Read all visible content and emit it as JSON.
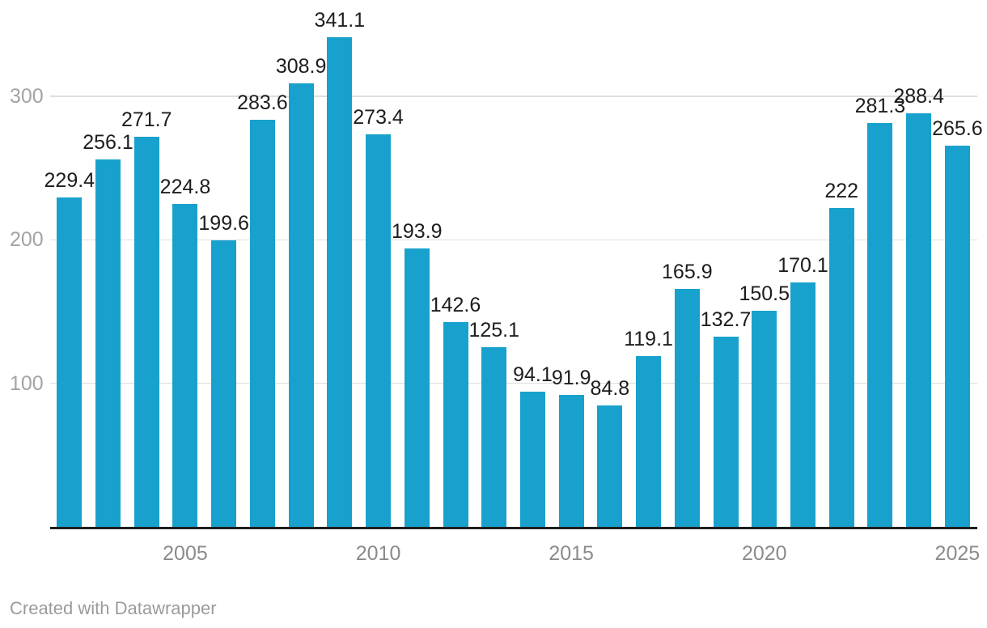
{
  "chart_data": {
    "type": "bar",
    "title": "",
    "xlabel": "",
    "ylabel": "",
    "categories": [
      2002,
      2003,
      2004,
      2005,
      2006,
      2007,
      2008,
      2009,
      2010,
      2011,
      2012,
      2013,
      2014,
      2015,
      2016,
      2017,
      2018,
      2019,
      2020,
      2021,
      2022,
      2023,
      2024,
      2025
    ],
    "values": [
      229.4,
      256.1,
      271.7,
      224.8,
      199.6,
      283.6,
      308.9,
      341.1,
      273.4,
      193.9,
      142.6,
      125.1,
      94.1,
      91.9,
      84.8,
      119.1,
      165.9,
      132.7,
      150.5,
      170.1,
      222,
      281.3,
      288.4,
      265.6
    ],
    "value_labels_shown": true,
    "value_label_position": "above-bars",
    "y_ticks": [
      100,
      200,
      300
    ],
    "x_tick_years": [
      2005,
      2010,
      2015,
      2020,
      2025
    ],
    "ylim": [
      0,
      367
    ],
    "grid": "horizontal",
    "legend": "none"
  },
  "colors": {
    "background": "#ffffff",
    "bar": "#18a1cd",
    "gridline": "#dedede",
    "axis_line": "#1f1f1f",
    "value_label": "#1d1d1d",
    "y_tick_label": "#a3a3a3",
    "x_tick_label": "#8b8b8b",
    "credit_text": "#9b9b9b"
  },
  "footer": {
    "credit": "Created with Datawrapper"
  }
}
